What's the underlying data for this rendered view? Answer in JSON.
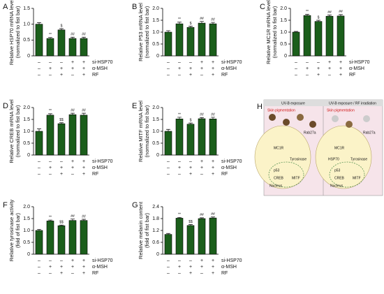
{
  "chart_data": [
    {
      "type": "bar",
      "panel": "A",
      "y_label": [
        "Relative HSP70 mRNA level",
        "(normalized to fist bar)"
      ],
      "values": [
        1.0,
        0.55,
        0.82,
        0.55,
        0.55
      ],
      "errors": [
        0.05,
        0.03,
        0.04,
        0.04,
        0.04
      ],
      "annotations": [
        null,
        "**",
        "$",
        "##",
        "##"
      ],
      "color": "#1b5e1b",
      "ylim": [
        0,
        1.5
      ],
      "yticks": [
        0,
        0.5,
        {
          "value": 1,
          "label": "1.0"
        },
        1.5
      ],
      "conditions": [
        {
          "name": "si-HSP70",
          "signs": [
            "–",
            "–",
            "–",
            "+",
            "+"
          ]
        },
        {
          "name": "α-MSH",
          "signs": [
            "–",
            "+",
            "+",
            "+",
            "+"
          ]
        },
        {
          "name": "RF",
          "signs": [
            "–",
            "–",
            "+",
            "–",
            "+"
          ]
        }
      ]
    },
    {
      "type": "bar",
      "panel": "B",
      "y_label": [
        "Relative P53 mRNA level",
        "(normalized to fist bar)"
      ],
      "values": [
        1.0,
        1.35,
        1.2,
        1.38,
        1.35
      ],
      "errors": [
        0.06,
        0.07,
        0.05,
        0.07,
        0.06
      ],
      "annotations": [
        null,
        "**",
        "$",
        "##",
        "##"
      ],
      "color": "#1b5e1b",
      "ylim": [
        0,
        2
      ],
      "yticks": [
        0,
        0.5,
        {
          "value": 1,
          "label": "1.0"
        },
        1.5,
        {
          "value": 2,
          "label": "2.0"
        }
      ],
      "conditions": [
        {
          "name": "si-HSP70",
          "signs": [
            "–",
            "–",
            "–",
            "+",
            "+"
          ]
        },
        {
          "name": "α-MSH",
          "signs": [
            "–",
            "+",
            "+",
            "+",
            "+"
          ]
        },
        {
          "name": "RF",
          "signs": [
            "–",
            "–",
            "+",
            "–",
            "+"
          ]
        }
      ]
    },
    {
      "type": "bar",
      "panel": "C",
      "y_label": [
        "Relative MC1R mRNA level",
        "(normalized to fist bar)"
      ],
      "values": [
        1.0,
        1.7,
        1.45,
        1.67,
        1.68
      ],
      "errors": [
        0.03,
        0.05,
        0.05,
        0.05,
        0.06
      ],
      "annotations": [
        null,
        "**",
        "$",
        "##",
        "##"
      ],
      "color": "#1b5e1b",
      "ylim": [
        0,
        2
      ],
      "yticks": [
        0,
        0.5,
        {
          "value": 1,
          "label": "1.0"
        },
        1.5,
        {
          "value": 2,
          "label": "2.0"
        }
      ],
      "conditions": [
        {
          "name": "si-HSP70",
          "signs": [
            "–",
            "–",
            "–",
            "+",
            "+"
          ]
        },
        {
          "name": "α-MSH",
          "signs": [
            "–",
            "+",
            "+",
            "+",
            "+"
          ]
        },
        {
          "name": "RF",
          "signs": [
            "–",
            "–",
            "+",
            "–",
            "+"
          ]
        }
      ]
    },
    {
      "type": "bar",
      "panel": "D",
      "y_label": [
        "Relative CREB mRNA level",
        "(normalized to fist bar)"
      ],
      "values": [
        1.0,
        1.68,
        1.32,
        1.7,
        1.68
      ],
      "errors": [
        0.1,
        0.06,
        0.04,
        0.06,
        0.08
      ],
      "annotations": [
        null,
        "**",
        "$$",
        "##",
        "##"
      ],
      "color": "#1b5e1b",
      "ylim": [
        0,
        2
      ],
      "yticks": [
        0,
        0.5,
        {
          "value": 1,
          "label": "1.0"
        },
        1.5,
        {
          "value": 2,
          "label": "2.0"
        }
      ],
      "conditions": [
        {
          "name": "si-HSP70",
          "signs": [
            "–",
            "–",
            "–",
            "+",
            "+"
          ]
        },
        {
          "name": "α-MSH",
          "signs": [
            "–",
            "+",
            "+",
            "+",
            "+"
          ]
        },
        {
          "name": "RF",
          "signs": [
            "–",
            "–",
            "+",
            "–",
            "+"
          ]
        }
      ]
    },
    {
      "type": "bar",
      "panel": "E",
      "y_label": [
        "Relative MITF mRNA level",
        "(normalized to fist bar)"
      ],
      "values": [
        1.0,
        1.52,
        1.3,
        1.53,
        1.52
      ],
      "errors": [
        0.08,
        0.07,
        0.05,
        0.05,
        0.07
      ],
      "annotations": [
        null,
        "**",
        "$",
        "##",
        "##"
      ],
      "color": "#1b5e1b",
      "ylim": [
        0,
        2
      ],
      "yticks": [
        0,
        0.5,
        {
          "value": 1,
          "label": "1.0"
        },
        1.5,
        {
          "value": 2,
          "label": "2.0"
        }
      ],
      "conditions": [
        {
          "name": "si-HSP70",
          "signs": [
            "–",
            "–",
            "–",
            "+",
            "+"
          ]
        },
        {
          "name": "α-MSH",
          "signs": [
            "–",
            "+",
            "+",
            "+",
            "+"
          ]
        },
        {
          "name": "RF",
          "signs": [
            "–",
            "–",
            "+",
            "–",
            "+"
          ]
        }
      ]
    },
    {
      "type": "bar",
      "panel": "F",
      "y_label": [
        "Relative tyrosinase activity",
        "(fold of fist bar)"
      ],
      "values": [
        1.0,
        1.4,
        1.2,
        1.42,
        1.42
      ],
      "errors": [
        0.05,
        0.04,
        0.03,
        0.06,
        0.05
      ],
      "annotations": [
        null,
        "**",
        "$$",
        "##",
        "##"
      ],
      "color": "#1b5e1b",
      "ylim": [
        0,
        2
      ],
      "yticks": [
        0,
        0.5,
        {
          "value": 1,
          "label": "1.0"
        },
        1.5,
        {
          "value": 2,
          "label": "2.0"
        }
      ],
      "conditions": [
        {
          "name": "si-HSP70",
          "signs": [
            "–",
            "–",
            "–",
            "+",
            "+"
          ]
        },
        {
          "name": "α-MSH",
          "signs": [
            "–",
            "+",
            "+",
            "+",
            "+"
          ]
        },
        {
          "name": "RF",
          "signs": [
            "–",
            "–",
            "+",
            "–",
            "+"
          ]
        }
      ]
    },
    {
      "type": "bar",
      "panel": "G",
      "y_label": [
        "Relative melanin content",
        "(fold of fist bar)"
      ],
      "values": [
        1.0,
        1.82,
        1.45,
        1.8,
        1.83
      ],
      "errors": [
        0.05,
        0.04,
        0.05,
        0.04,
        0.05
      ],
      "annotations": [
        null,
        "**",
        "$$",
        "##",
        "##"
      ],
      "color": "#1b5e1b",
      "ylim": [
        0,
        2.4
      ],
      "yticks": [
        0,
        0.6,
        1.2,
        1.8,
        2.4
      ],
      "conditions": [
        {
          "name": "si-HSP70",
          "signs": [
            "–",
            "–",
            "–",
            "+",
            "+"
          ]
        },
        {
          "name": "α-MSH",
          "signs": [
            "–",
            "+",
            "+",
            "+",
            "+"
          ]
        },
        {
          "name": "RF",
          "signs": [
            "–",
            "–",
            "+",
            "–",
            "+"
          ]
        }
      ]
    }
  ],
  "diagram": {
    "panel": "H",
    "left_title": "UV-B exposure",
    "right_title": "UV-B exposure / RF irradiation",
    "left_effect": "Skin pigmentation",
    "right_effect": "Skin pigmentation",
    "left_labels": [
      "Rab27a",
      "MC1R",
      "Tyrosinase",
      "p53",
      "CREB",
      "MITF",
      "Nucleus"
    ],
    "right_labels": [
      "Rab27a",
      "HSP70",
      "MC1R",
      "Tyrosinase",
      "p53",
      "CREB",
      "MITF",
      "Nucleus"
    ]
  }
}
